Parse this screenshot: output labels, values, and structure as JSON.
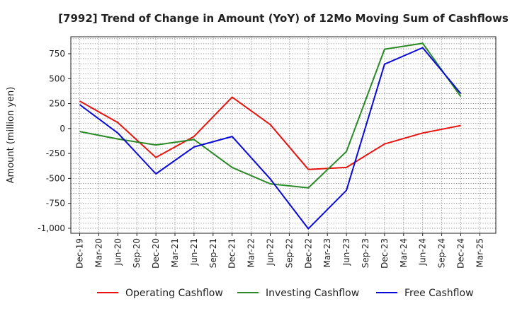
{
  "chart_data": {
    "type": "line",
    "title": "[7992]  Trend of Change in Amount (YoY) of 12Mo Moving Sum of Cashflows",
    "xlabel": "",
    "ylabel": "Amount (million yen)",
    "ylim": [
      -1050,
      920
    ],
    "yticks": [
      -1000,
      -750,
      -500,
      -250,
      0,
      250,
      500,
      750
    ],
    "ytick_labels": [
      "-1,000",
      "-750",
      "-500",
      "-250",
      "0",
      "250",
      "500",
      "750"
    ],
    "categories": [
      "Dec-19",
      "Mar-20",
      "Jun-20",
      "Sep-20",
      "Dec-20",
      "Mar-21",
      "Jun-21",
      "Sep-21",
      "Dec-21",
      "Mar-22",
      "Jun-22",
      "Sep-22",
      "Dec-22",
      "Mar-23",
      "Jun-23",
      "Sep-23",
      "Dec-23",
      "Mar-24",
      "Jun-24",
      "Sep-24",
      "Dec-24",
      "Mar-25"
    ],
    "grid": true,
    "legend_position": "bottom",
    "series": [
      {
        "name": "Operating Cashflow",
        "color": "#e8130f",
        "values": [
          275,
          null,
          60,
          null,
          -290,
          null,
          -80,
          null,
          315,
          null,
          40,
          null,
          -410,
          null,
          -390,
          null,
          -155,
          null,
          -45,
          null,
          30,
          null
        ]
      },
      {
        "name": "Investing Cashflow",
        "color": "#2a8a25",
        "values": [
          -30,
          null,
          -105,
          null,
          -165,
          null,
          -110,
          null,
          -390,
          null,
          -555,
          null,
          -595,
          null,
          -230,
          null,
          795,
          null,
          855,
          null,
          320,
          null
        ]
      },
      {
        "name": "Free Cashflow",
        "color": "#0a0ad8",
        "values": [
          240,
          null,
          -45,
          null,
          -455,
          null,
          -185,
          null,
          -80,
          null,
          -505,
          null,
          -1005,
          null,
          -620,
          null,
          645,
          null,
          810,
          null,
          350,
          null
        ]
      }
    ]
  }
}
